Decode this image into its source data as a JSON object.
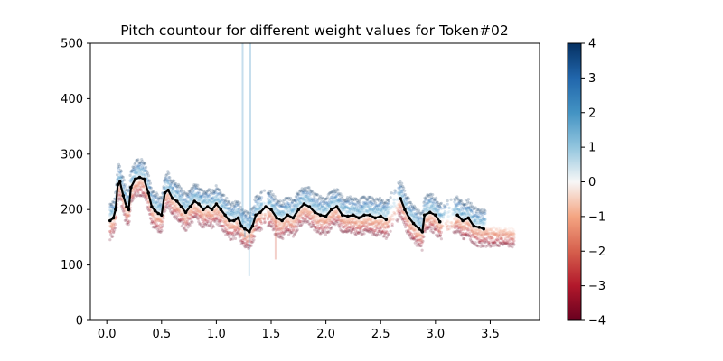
{
  "chart_data": {
    "type": "scatter",
    "title": "Pitch countour for different weight values for Token#02",
    "xlabel": "",
    "ylabel": "",
    "xlim": [
      -0.15,
      3.95
    ],
    "ylim": [
      0,
      500
    ],
    "x_ticks": [
      0.0,
      0.5,
      1.0,
      1.5,
      2.0,
      2.5,
      3.0,
      3.5
    ],
    "x_tick_labels": [
      "0.0",
      "0.5",
      "1.0",
      "1.5",
      "2.0",
      "2.5",
      "3.0",
      "3.5"
    ],
    "y_ticks": [
      0,
      100,
      200,
      300,
      400,
      500
    ],
    "y_tick_labels": [
      "0",
      "100",
      "200",
      "300",
      "400",
      "500"
    ],
    "grid": false,
    "colorbar": {
      "colormap": "RdBu",
      "range": [
        -4,
        4
      ],
      "ticks": [
        -4,
        -3,
        -2,
        -1,
        0,
        1,
        2,
        3,
        4
      ],
      "tick_labels": [
        "−4",
        "−3",
        "−2",
        "−1",
        "0",
        "1",
        "2",
        "3",
        "4"
      ],
      "colors": {
        "low": "#67001f",
        "mid": "#f7f7f7",
        "high": "#053061"
      }
    },
    "reference_series": {
      "color": "#000000",
      "x": [
        0.03,
        0.06,
        0.08,
        0.1,
        0.12,
        0.15,
        0.18,
        0.2,
        0.22,
        0.26,
        0.3,
        0.34,
        0.38,
        0.41,
        0.44,
        0.47,
        0.5,
        0.53,
        0.56,
        0.6,
        0.64,
        0.68,
        0.72,
        0.76,
        0.8,
        0.84,
        0.88,
        0.92,
        0.96,
        1.0,
        1.04,
        1.08,
        1.12,
        1.16,
        1.2,
        1.23,
        1.26,
        1.3,
        1.33,
        1.36,
        1.4,
        1.45,
        1.5,
        1.55,
        1.6,
        1.65,
        1.7,
        1.75,
        1.8,
        1.85,
        1.9,
        1.95,
        2.0,
        2.05,
        2.1,
        2.15,
        2.2,
        2.25,
        2.3,
        2.35,
        2.4,
        2.45,
        2.5,
        2.55,
        2.68,
        2.72,
        2.76,
        2.8,
        2.85,
        2.88,
        2.9,
        2.95,
        3.0,
        3.04,
        3.2,
        3.25,
        3.3,
        3.35,
        3.4,
        3.44
      ],
      "y": [
        180,
        185,
        200,
        245,
        250,
        225,
        205,
        200,
        240,
        255,
        258,
        255,
        230,
        205,
        198,
        193,
        190,
        230,
        235,
        220,
        215,
        205,
        195,
        205,
        215,
        210,
        200,
        205,
        200,
        210,
        200,
        190,
        180,
        180,
        185,
        170,
        165,
        160,
        170,
        190,
        195,
        205,
        200,
        185,
        180,
        190,
        185,
        200,
        210,
        205,
        195,
        190,
        188,
        200,
        205,
        190,
        188,
        190,
        185,
        190,
        190,
        185,
        188,
        182,
        220,
        200,
        185,
        175,
        165,
        160,
        190,
        195,
        190,
        178,
        190,
        180,
        185,
        170,
        168,
        165
      ]
    }
  }
}
